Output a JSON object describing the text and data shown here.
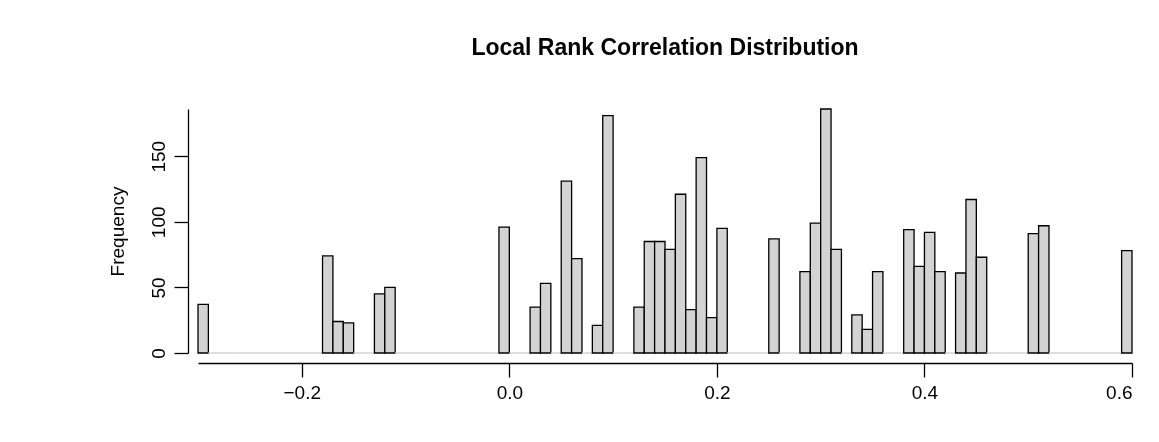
{
  "chart_data": {
    "type": "histogram",
    "title": "Local Rank Correlation Distribution",
    "ylabel": "Frequency",
    "bins": [
      -0.3,
      -0.29,
      -0.28,
      -0.27,
      -0.26,
      -0.25,
      -0.24,
      -0.23,
      -0.22,
      -0.21,
      -0.2,
      -0.19,
      -0.18,
      -0.17,
      -0.16,
      -0.15,
      -0.14,
      -0.13,
      -0.12,
      -0.11,
      -0.1,
      -0.09,
      -0.08,
      -0.07,
      -0.06,
      -0.05,
      -0.04,
      -0.03,
      -0.02,
      -0.01,
      0.0,
      0.01,
      0.02,
      0.03,
      0.04,
      0.05,
      0.06,
      0.07,
      0.08,
      0.09,
      0.1,
      0.11,
      0.12,
      0.13,
      0.14,
      0.15,
      0.16,
      0.17,
      0.18,
      0.19,
      0.2,
      0.21,
      0.22,
      0.23,
      0.24,
      0.25,
      0.26,
      0.27,
      0.28,
      0.29,
      0.3,
      0.31,
      0.32,
      0.33,
      0.34,
      0.35,
      0.36,
      0.37,
      0.38,
      0.39,
      0.4,
      0.41,
      0.42,
      0.43,
      0.44,
      0.45,
      0.46,
      0.47,
      0.48,
      0.49,
      0.5,
      0.51,
      0.52,
      0.53,
      0.54,
      0.55,
      0.56,
      0.57,
      0.58,
      0.59,
      0.6
    ],
    "values": [
      37,
      0,
      0,
      0,
      0,
      0,
      0,
      0,
      0,
      0,
      0,
      0,
      74,
      24,
      23,
      0,
      0,
      45,
      50,
      0,
      0,
      0,
      0,
      0,
      0,
      0,
      0,
      0,
      0,
      96,
      0,
      0,
      35,
      53,
      0,
      131,
      72,
      0,
      21,
      181,
      0,
      0,
      35,
      85,
      85,
      79,
      121,
      33,
      149,
      27,
      95,
      0,
      0,
      0,
      0,
      87,
      0,
      0,
      62,
      99,
      186,
      79,
      0,
      29,
      18,
      62,
      0,
      0,
      94,
      66,
      92,
      62,
      0,
      61,
      117,
      73,
      0,
      0,
      0,
      0,
      91,
      97,
      0,
      0,
      0,
      0,
      0,
      0,
      0,
      78
    ],
    "color": "#d3d3d3",
    "xlim": [
      -0.3,
      0.6
    ],
    "ylim": [
      0,
      186
    ],
    "xticks": [
      {
        "value": -0.2,
        "label": "−0.2"
      },
      {
        "value": 0.0,
        "label": "0.0"
      },
      {
        "value": 0.2,
        "label": "0.2"
      },
      {
        "value": 0.4,
        "label": "0.4"
      },
      {
        "value": 0.6,
        "label": "0.6"
      }
    ],
    "yticks": [
      0,
      50,
      100,
      150
    ],
    "grid": false
  }
}
